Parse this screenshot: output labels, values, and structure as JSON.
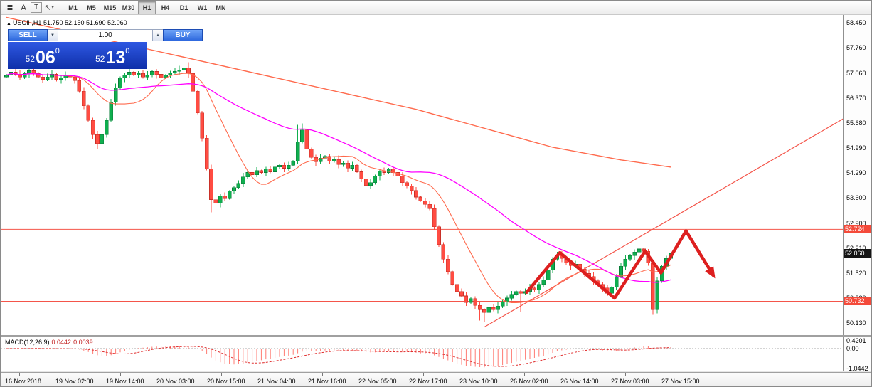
{
  "toolbar": {
    "icons": [
      {
        "name": "chart-window-icon",
        "glyph": "≣"
      },
      {
        "name": "font-tool-icon",
        "glyph": "A"
      },
      {
        "name": "text-tool-icon",
        "glyph": "T"
      },
      {
        "name": "cursor-tool-icon",
        "glyph": "↖",
        "caret": "▾"
      }
    ],
    "timeframes": [
      {
        "label": "M1",
        "active": false
      },
      {
        "label": "M5",
        "active": false
      },
      {
        "label": "M15",
        "active": false
      },
      {
        "label": "M30",
        "active": false
      },
      {
        "label": "H1",
        "active": true
      },
      {
        "label": "H4",
        "active": false
      },
      {
        "label": "D1",
        "active": false
      },
      {
        "label": "W1",
        "active": false
      },
      {
        "label": "MN",
        "active": false
      }
    ]
  },
  "chart": {
    "collapse_icon": "▲",
    "symbol_title": "USOil-,H1",
    "ohlc": "51.750 52.150 51.690 52.060",
    "trade_panel": {
      "sell_label": "SELL",
      "buy_label": "BUY",
      "lot_value": "1.00",
      "down_caret": "▼",
      "up_caret": "▲",
      "sell_price": {
        "small": "52",
        "big": "06",
        "sup": "0"
      },
      "buy_price": {
        "small": "52",
        "big": "13",
        "sup": "0"
      }
    },
    "price_axis": [
      "58.450",
      "57.760",
      "57.060",
      "56.370",
      "55.680",
      "54.990",
      "54.290",
      "53.600",
      "52.900",
      "52.210",
      "51.520",
      "50.820",
      "50.130"
    ],
    "price_tags": [
      {
        "label": "52.724",
        "price": 52.724,
        "bg": "#f44a3a",
        "fg": "#ffffff"
      },
      {
        "label": "52.060",
        "price": 52.06,
        "bg": "#141414",
        "fg": "#ffffff"
      },
      {
        "label": "50.732",
        "price": 50.732,
        "bg": "#f44a3a",
        "fg": "#ffffff"
      }
    ]
  },
  "macd": {
    "label": "MACD(12,26,9)",
    "values": [
      "0.0442",
      "0.0039"
    ],
    "axis": [
      "0.4201",
      "0.00",
      "-1.0442"
    ]
  },
  "time_axis": [
    "16 Nov 2018",
    "19 Nov 02:00",
    "19 Nov 14:00",
    "20 Nov 03:00",
    "20 Nov 15:00",
    "21 Nov 04:00",
    "21 Nov 16:00",
    "22 Nov 05:00",
    "22 Nov 17:00",
    "23 Nov 10:00",
    "26 Nov 02:00",
    "26 Nov 14:00",
    "27 Nov 03:00",
    "27 Nov 15:00"
  ],
  "chart_data": {
    "type": "candlestick",
    "title": "USOil-,H1",
    "ylim": [
      50.13,
      58.45
    ],
    "closes": [
      57.0,
      57.08,
      57.02,
      56.95,
      57.05,
      57.12,
      57.05,
      56.95,
      56.88,
      56.95,
      57.02,
      56.88,
      56.92,
      57.0,
      56.95,
      56.85,
      56.55,
      56.15,
      55.75,
      55.35,
      55.1,
      55.35,
      55.75,
      56.25,
      56.65,
      56.92,
      57.0,
      57.08,
      57.0,
      57.05,
      56.95,
      57.0,
      57.1,
      57.02,
      56.92,
      57.0,
      57.06,
      57.1,
      57.14,
      57.2,
      57.05,
      56.55,
      55.95,
      55.25,
      54.4,
      53.55,
      53.45,
      53.65,
      53.58,
      53.78,
      53.88,
      54.0,
      54.18,
      54.3,
      54.24,
      54.35,
      54.3,
      54.4,
      54.32,
      54.45,
      54.5,
      54.42,
      54.5,
      54.62,
      55.15,
      55.48,
      54.95,
      54.72,
      54.6,
      54.7,
      54.75,
      54.62,
      54.66,
      54.52,
      54.56,
      54.42,
      54.5,
      54.32,
      54.12,
      53.94,
      54.02,
      54.2,
      54.34,
      54.3,
      54.4,
      54.3,
      54.2,
      54.02,
      53.92,
      53.8,
      53.62,
      53.52,
      53.42,
      53.3,
      52.8,
      52.3,
      51.9,
      51.55,
      51.2,
      51.0,
      50.88,
      50.7,
      50.8,
      50.62,
      50.5,
      50.42,
      50.56,
      50.5,
      50.6,
      50.72,
      50.82,
      50.92,
      51.0,
      50.95,
      51.0,
      51.1,
      51.05,
      51.2,
      51.32,
      51.6,
      51.9,
      52.02,
      51.92,
      51.8,
      51.72,
      51.76,
      51.62,
      51.5,
      51.42,
      51.3,
      51.2,
      51.1,
      50.95,
      51.12,
      51.42,
      51.7,
      51.9,
      52.0,
      52.1,
      52.18,
      52.12,
      51.8,
      50.5,
      51.3,
      51.7,
      51.92,
      52.06
    ],
    "first_open": 56.95,
    "wick_overrides": {
      "20": {
        "l": 54.95
      },
      "39": {
        "h": 57.3
      },
      "40": {
        "h": 57.36
      },
      "45": {
        "l": 53.2
      },
      "64": {
        "h": 55.62
      },
      "65": {
        "h": 55.66
      },
      "104": {
        "l": 50.2
      },
      "105": {
        "l": 50.16
      },
      "106": {
        "l": 50.24
      },
      "113": {
        "l": 50.45
      },
      "142": {
        "l": 50.36
      }
    },
    "overlays": {
      "sma_fast_period": 13,
      "sma_slow_period": 45,
      "upper_line_points": [
        [
          0,
          58.6
        ],
        [
          30,
          57.75
        ],
        [
          60,
          56.9
        ],
        [
          90,
          56.05
        ],
        [
          120,
          55.0
        ],
        [
          135,
          54.65
        ],
        [
          146,
          54.45
        ]
      ],
      "trendline": {
        "x1": 105,
        "p1": 50.02,
        "x2": 184,
        "p2": 55.8
      },
      "hlines": [
        {
          "price": 52.724,
          "color": "#f4554a"
        },
        {
          "price": 50.732,
          "color": "#f4554a"
        },
        {
          "price": 52.21,
          "color": "#b8b8b8"
        }
      ],
      "zigzag": {
        "points": [
          [
            114.3,
            50.98
          ],
          [
            121.6,
            52.08
          ],
          [
            133.6,
            50.82
          ],
          [
            140.3,
            52.12
          ],
          [
            143.8,
            51.52
          ],
          [
            149.3,
            52.68
          ],
          [
            155.3,
            51.45
          ]
        ],
        "color": "#dd1f1f",
        "width": 4.5
      }
    },
    "macd_params": {
      "fast": 12,
      "slow": 26,
      "signal": 9,
      "ymax": 0.4201,
      "ymin": -1.0442
    }
  },
  "colors": {
    "up": "#0fae4e",
    "up_stroke": "#0a7c38",
    "down": "#ff4c42",
    "down_stroke": "#c93028",
    "ma_magenta": "#ff00ff",
    "ma_orange": "#ff6a4d",
    "trendline": "#f4554a",
    "macd_hist": "#ff7a72",
    "macd_signal": "#e03030"
  }
}
